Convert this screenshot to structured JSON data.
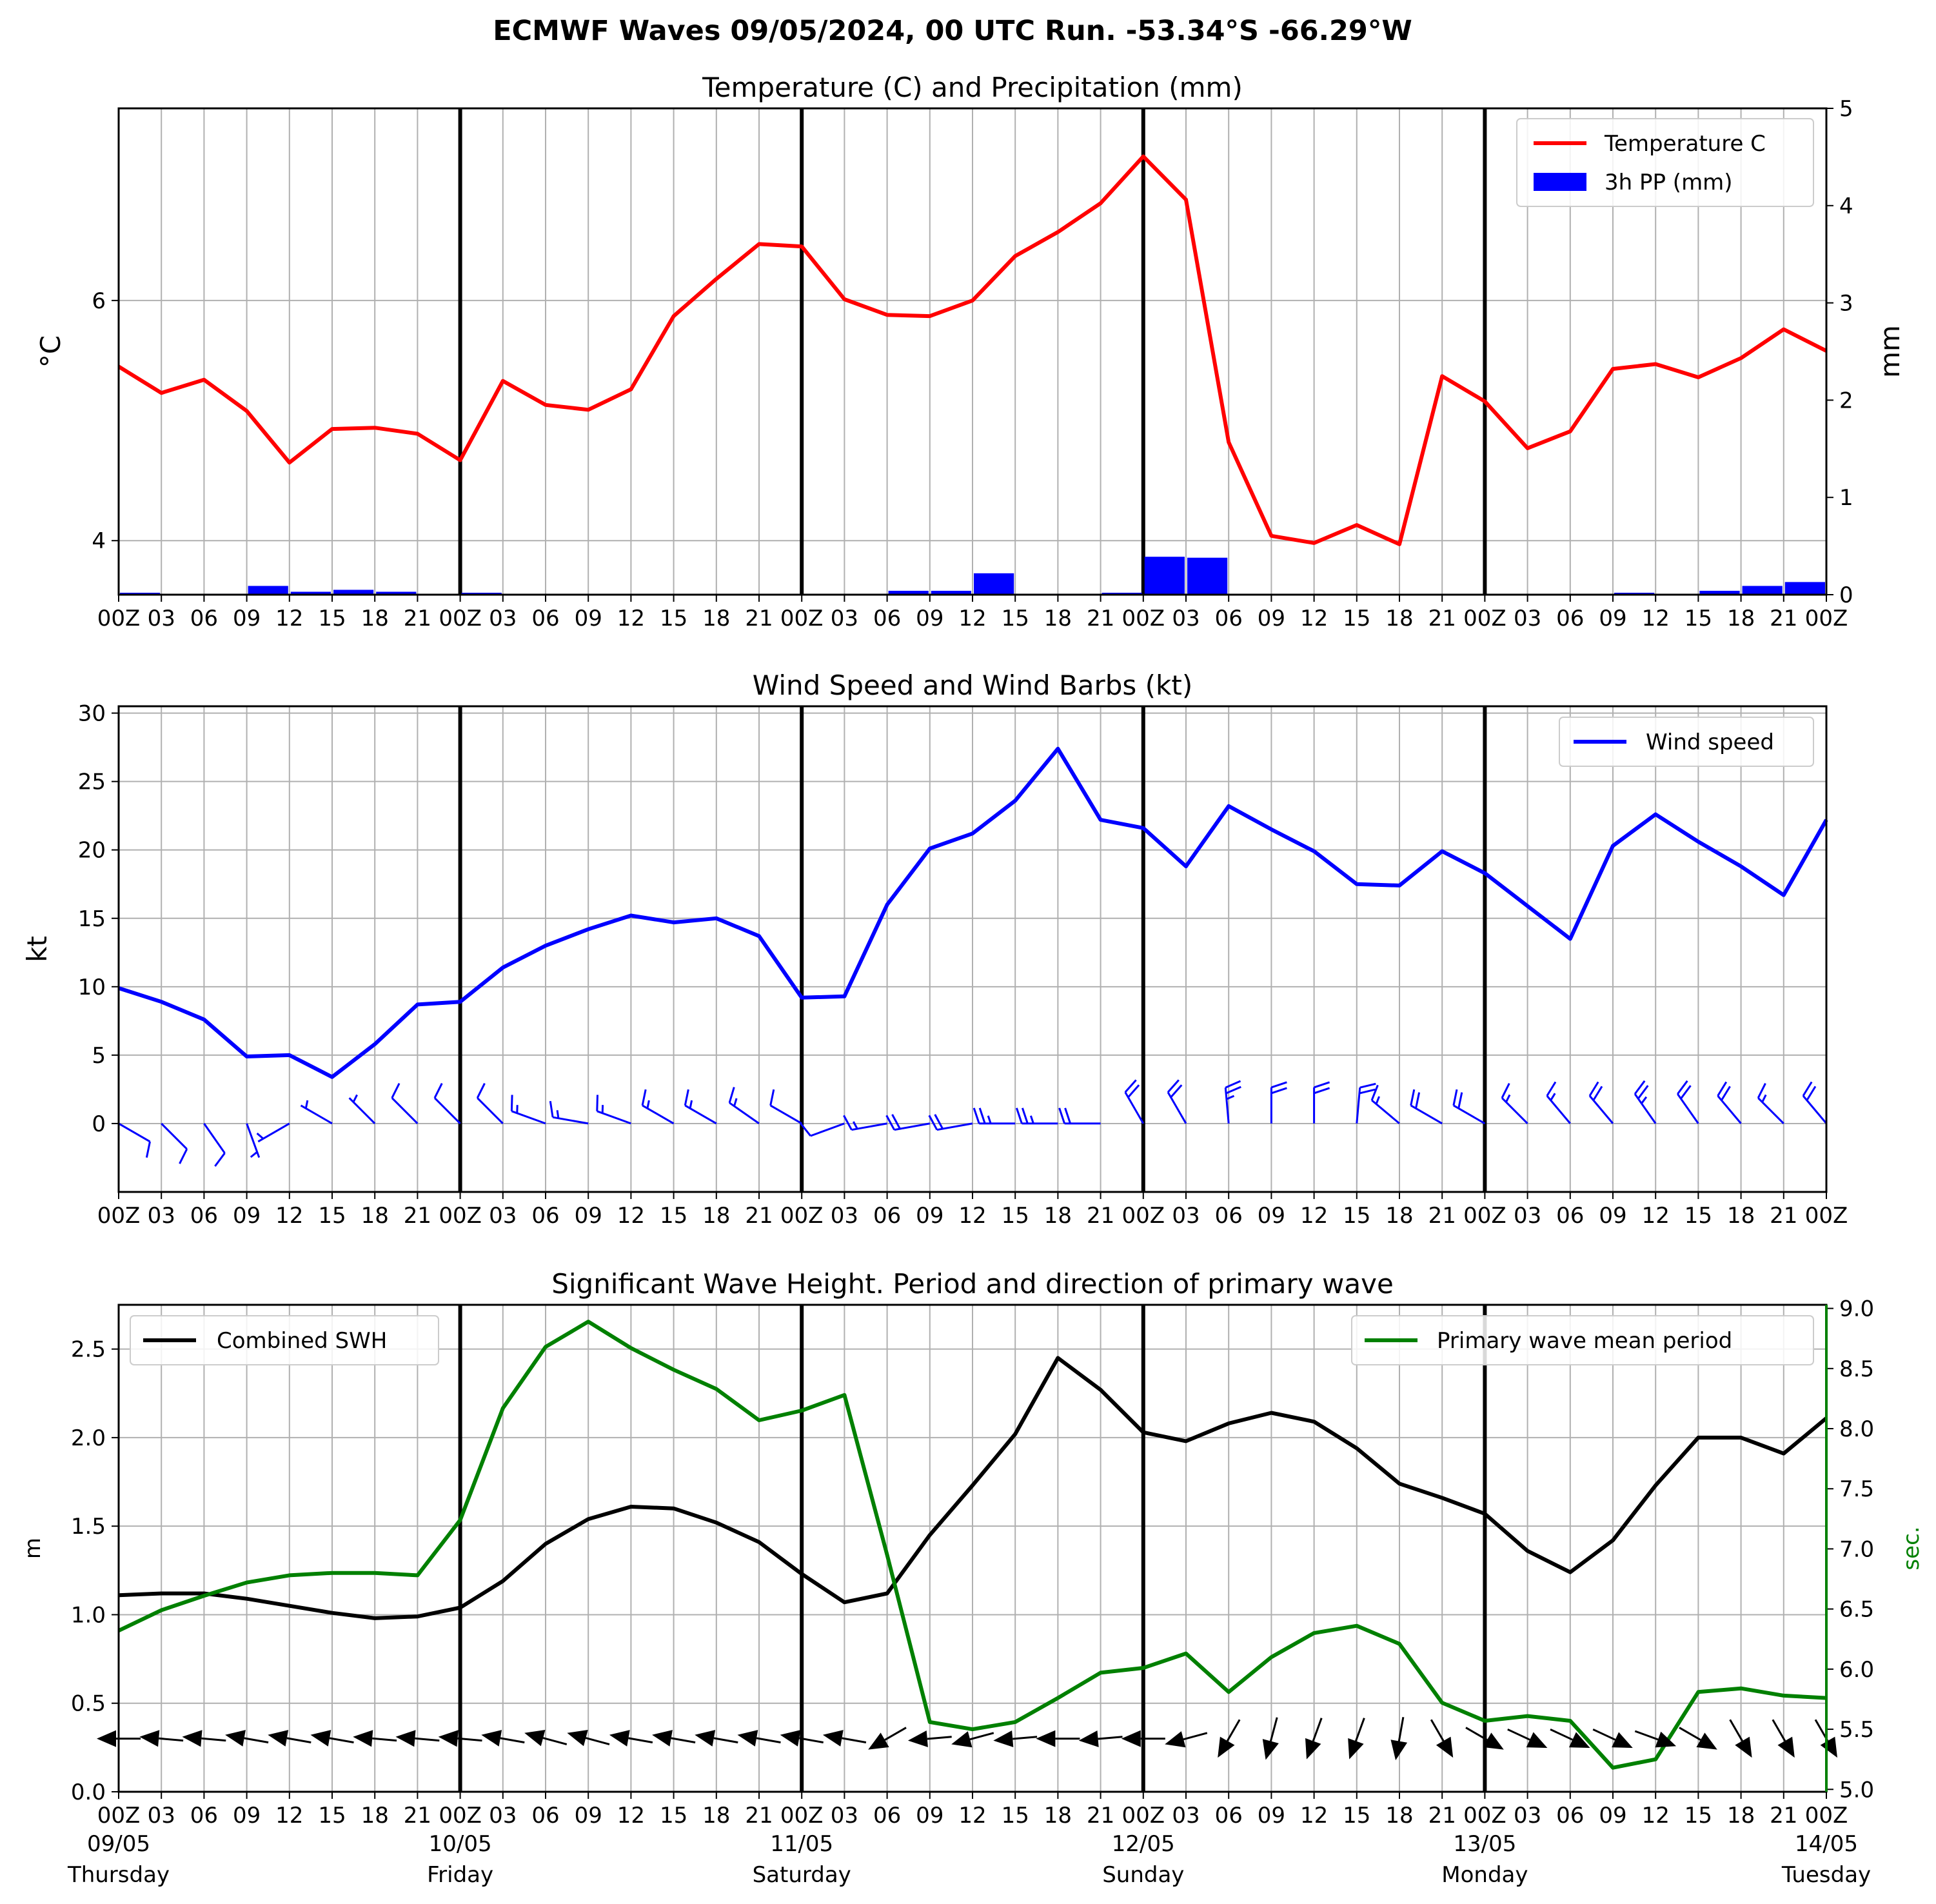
{
  "title": "ECMWF Waves 09/05/2024, 00 UTC Run. -53.34°S -66.29°W",
  "time_tick_labels": [
    "00Z",
    "03",
    "06",
    "09",
    "12",
    "15",
    "18",
    "21",
    "00Z",
    "03",
    "06",
    "09",
    "12",
    "15",
    "18",
    "21",
    "00Z",
    "03",
    "06",
    "09",
    "12",
    "15",
    "18",
    "21",
    "00Z",
    "03",
    "06",
    "09",
    "12",
    "15",
    "18",
    "21",
    "00Z",
    "03",
    "06",
    "09",
    "12",
    "15",
    "18",
    "21",
    "00Z"
  ],
  "date_labels": [
    {
      "date": "09/05",
      "day": "Thursday"
    },
    {
      "date": "10/05",
      "day": "Friday"
    },
    {
      "date": "11/05",
      "day": "Saturday"
    },
    {
      "date": "12/05",
      "day": "Sunday"
    },
    {
      "date": "13/05",
      "day": "Monday"
    },
    {
      "date": "14/05",
      "day": "Tuesday"
    }
  ],
  "colors": {
    "temperature": "#ff0000",
    "precip": "#0000ff",
    "wind": "#0000ff",
    "swh": "#000000",
    "period": "#008000",
    "grid": "#b0b0b0"
  },
  "chart_data": [
    {
      "type": "line",
      "title": "Temperature (C) and Precipitation (mm)",
      "xlabel": "",
      "ylabel": "°C",
      "ylabel_right": "mm",
      "x_hours": [
        0,
        3,
        6,
        9,
        12,
        15,
        18,
        21,
        24,
        27,
        30,
        33,
        36,
        39,
        42,
        45,
        48,
        51,
        54,
        57,
        60,
        63,
        66,
        69,
        72,
        75,
        78,
        81,
        84,
        87,
        90,
        93,
        96,
        99,
        102,
        105,
        108,
        111,
        114,
        117,
        120
      ],
      "ylim": [
        3.55,
        7.6
      ],
      "yticks": [
        4,
        6
      ],
      "ylim_right": [
        0,
        5
      ],
      "yticks_right": [
        0,
        1,
        2,
        3,
        4,
        5
      ],
      "grid": true,
      "legend_position": "upper right",
      "series": [
        {
          "name": "Temperature C",
          "axis": "left",
          "kind": "line",
          "values": [
            5.45,
            5.23,
            5.34,
            5.08,
            4.65,
            4.93,
            4.94,
            4.89,
            4.67,
            5.33,
            5.13,
            5.09,
            5.26,
            5.87,
            6.18,
            6.47,
            6.45,
            6.01,
            5.88,
            5.87,
            6.0,
            6.37,
            6.57,
            6.81,
            7.2,
            6.84,
            4.82,
            4.04,
            3.98,
            4.13,
            3.97,
            5.37,
            5.16,
            4.77,
            4.91,
            5.43,
            5.47,
            5.36,
            5.52,
            5.76,
            5.58
          ]
        },
        {
          "name": "3h PP (mm)",
          "axis": "right",
          "kind": "bar",
          "values": [
            0.02,
            0.0,
            0.01,
            0.09,
            0.03,
            0.05,
            0.03,
            0.0,
            0.02,
            0.0,
            0.0,
            0.0,
            0.0,
            0.0,
            0.0,
            0.0,
            0.0,
            0.0,
            0.04,
            0.04,
            0.22,
            0.01,
            0.01,
            0.02,
            0.39,
            0.38,
            0.0,
            0.0,
            0.0,
            0.0,
            0.0,
            0.0,
            0.0,
            0.0,
            0.0,
            0.02,
            0.0,
            0.04,
            0.09,
            0.13
          ]
        }
      ]
    },
    {
      "type": "line",
      "title": "Wind Speed and Wind Barbs (kt)",
      "xlabel": "",
      "ylabel": "kt",
      "x_hours": [
        0,
        3,
        6,
        9,
        12,
        15,
        18,
        21,
        24,
        27,
        30,
        33,
        36,
        39,
        42,
        45,
        48,
        51,
        54,
        57,
        60,
        63,
        66,
        69,
        72,
        75,
        78,
        81,
        84,
        87,
        90,
        93,
        96,
        99,
        102,
        105,
        108,
        111,
        114,
        117,
        120
      ],
      "ylim": [
        -5,
        30.5
      ],
      "yticks": [
        0,
        5,
        10,
        15,
        20,
        25,
        30
      ],
      "grid": true,
      "legend_position": "upper right",
      "series": [
        {
          "name": "Wind speed",
          "kind": "line",
          "values": [
            9.9,
            8.9,
            7.6,
            4.9,
            5.0,
            3.4,
            5.8,
            8.7,
            8.9,
            11.4,
            13.0,
            14.2,
            15.2,
            14.7,
            15.0,
            13.7,
            9.2,
            9.3,
            16.0,
            20.1,
            21.2,
            23.6,
            27.4,
            22.2,
            21.6,
            18.8,
            23.2,
            21.5,
            19.9,
            17.5,
            17.4,
            19.9,
            18.3,
            15.9,
            13.5,
            20.3,
            22.6,
            20.6,
            18.8,
            16.7,
            22.2
          ]
        }
      ],
      "wind_barbs_from_deg": [
        120,
        135,
        145,
        160,
        240,
        300,
        315,
        315,
        315,
        315,
        290,
        280,
        290,
        300,
        300,
        305,
        300,
        250,
        260,
        260,
        260,
        270,
        270,
        270,
        330,
        330,
        355,
        0,
        0,
        5,
        310,
        300,
        300,
        315,
        320,
        320,
        325,
        325,
        320,
        315,
        320
      ]
    },
    {
      "type": "line",
      "title": "Significant Wave Height. Period and direction of primary wave",
      "xlabel": "",
      "ylabel": "m",
      "ylabel_right": "sec.",
      "x_hours": [
        0,
        3,
        6,
        9,
        12,
        15,
        18,
        21,
        24,
        27,
        30,
        33,
        36,
        39,
        42,
        45,
        48,
        51,
        54,
        57,
        60,
        63,
        66,
        69,
        72,
        75,
        78,
        81,
        84,
        87,
        90,
        93,
        96,
        99,
        102,
        105,
        108,
        111,
        114,
        117,
        120
      ],
      "ylim": [
        0,
        2.75
      ],
      "yticks": [
        0.0,
        0.5,
        1.0,
        1.5,
        2.0,
        2.5
      ],
      "ylim_right": [
        4.98,
        9.03
      ],
      "yticks_right": [
        5.0,
        5.5,
        6.0,
        6.5,
        7.0,
        7.5,
        8.0,
        8.5,
        9.0
      ],
      "grid": true,
      "legend_positions": [
        "upper left",
        "upper right"
      ],
      "series": [
        {
          "name": "Combined SWH",
          "axis": "left",
          "kind": "line",
          "values": [
            1.11,
            1.12,
            1.12,
            1.09,
            1.05,
            1.01,
            0.98,
            0.99,
            1.04,
            1.19,
            1.4,
            1.54,
            1.61,
            1.6,
            1.52,
            1.41,
            1.23,
            1.07,
            1.12,
            1.45,
            1.73,
            2.02,
            2.45,
            2.27,
            2.03,
            1.98,
            2.08,
            2.14,
            2.09,
            1.94,
            1.74,
            1.66,
            1.57,
            1.36,
            1.24,
            1.42,
            1.73,
            2.0,
            2.0,
            1.91,
            2.11
          ]
        },
        {
          "name": "Primary wave mean period",
          "axis": "right",
          "kind": "line",
          "values": [
            6.32,
            6.49,
            6.61,
            6.72,
            6.78,
            6.8,
            6.8,
            6.78,
            7.24,
            8.17,
            8.68,
            8.89,
            8.67,
            8.49,
            8.33,
            8.07,
            8.15,
            8.28,
            6.95,
            5.56,
            5.5,
            5.56,
            5.76,
            5.97,
            6.01,
            6.13,
            5.81,
            6.1,
            6.3,
            6.36,
            6.21,
            5.72,
            5.57,
            5.61,
            5.57,
            5.18,
            5.25,
            5.81,
            5.84,
            5.78,
            5.76
          ]
        }
      ],
      "primary_wave_direction_from_deg": [
        90,
        95,
        95,
        100,
        100,
        100,
        95,
        95,
        95,
        100,
        105,
        105,
        100,
        100,
        100,
        100,
        100,
        100,
        60,
        85,
        75,
        85,
        90,
        85,
        90,
        75,
        30,
        15,
        20,
        20,
        10,
        330,
        300,
        295,
        295,
        295,
        290,
        300,
        330,
        330,
        330
      ]
    }
  ]
}
